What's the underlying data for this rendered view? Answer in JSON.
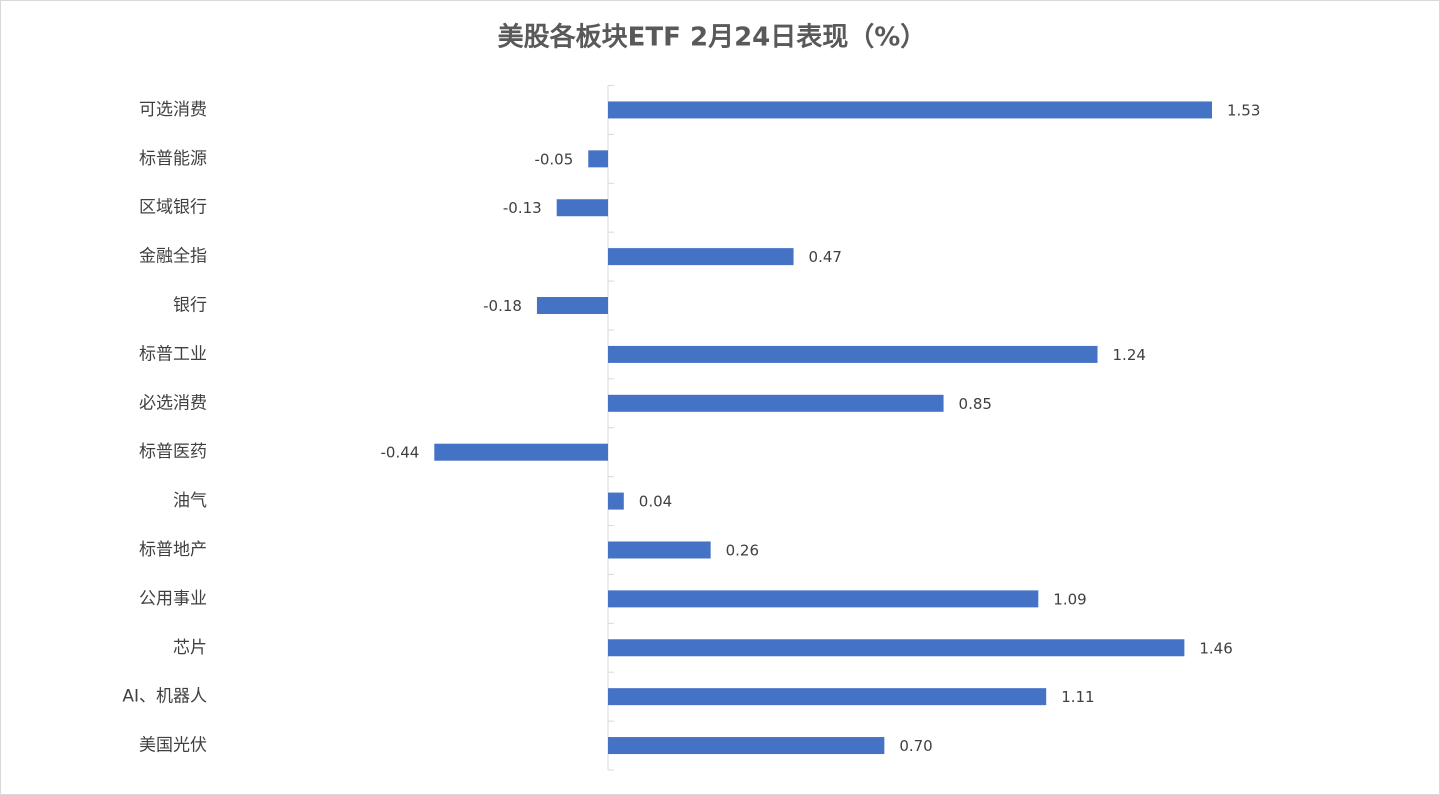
{
  "chart_data": {
    "type": "bar",
    "orientation": "horizontal",
    "title": "美股各板块ETF  2月24日表现（%）",
    "categories": [
      "可选消费",
      "标普能源",
      "区域银行",
      "金融全指",
      "银行",
      "标普工业",
      "必选消费",
      "标普医药",
      "油气",
      "标普地产",
      "公用事业",
      "芯片",
      "AI、机器人",
      "美国光伏"
    ],
    "values": [
      1.53,
      -0.05,
      -0.13,
      0.47,
      -0.18,
      1.24,
      0.85,
      -0.44,
      0.04,
      0.26,
      1.09,
      1.46,
      1.11,
      0.7
    ],
    "value_labels": [
      "1.53",
      "-0.05",
      "-0.13",
      "0.47",
      "-0.18",
      "1.24",
      "0.85",
      "-0.44",
      "0.04",
      "0.26",
      "1.09",
      "1.46",
      "1.11",
      "0.70"
    ],
    "color": "#4472c4"
  }
}
